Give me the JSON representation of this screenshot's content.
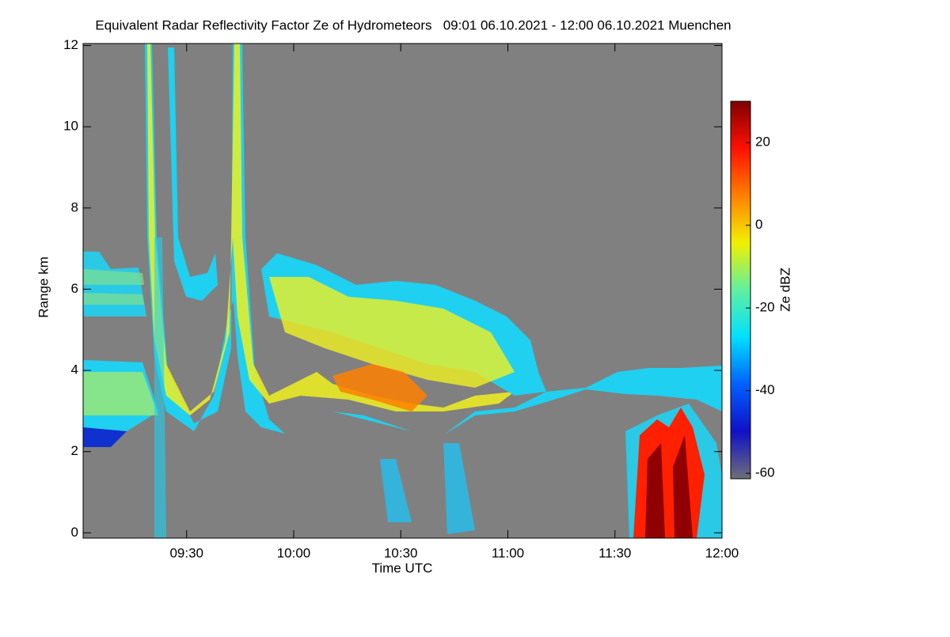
{
  "chart_data": {
    "type": "heatmap",
    "title": "Equivalent Radar Reflectivity Factor Ze of Hydrometeors   09:01 06.10.2021 - 12:00 06.10.2021 Muenchen",
    "x_label": "Time UTC",
    "y_label": "Range km",
    "xlim": [
      541,
      720
    ],
    "xticks": [
      {
        "value": 570,
        "label": "09:30"
      },
      {
        "value": 600,
        "label": "10:00"
      },
      {
        "value": 630,
        "label": "10:30"
      },
      {
        "value": 660,
        "label": "11:00"
      },
      {
        "value": 690,
        "label": "11:30"
      },
      {
        "value": 720,
        "label": "12:00"
      }
    ],
    "ylim": [
      -0.13,
      12.05
    ],
    "yticks": [
      0,
      2,
      4,
      6,
      8,
      10,
      12
    ],
    "colorbar": {
      "label": "Ze dBZ",
      "lim": [
        -61.3,
        30
      ],
      "ticks": [
        -60,
        -40,
        -20,
        0,
        20
      ],
      "colors": [
        "#6e6e78",
        "#1010c8",
        "#0060ff",
        "#00e0ff",
        "#60f0a0",
        "#f0f000",
        "#ff8000",
        "#ff1000",
        "#800000"
      ]
    }
  }
}
